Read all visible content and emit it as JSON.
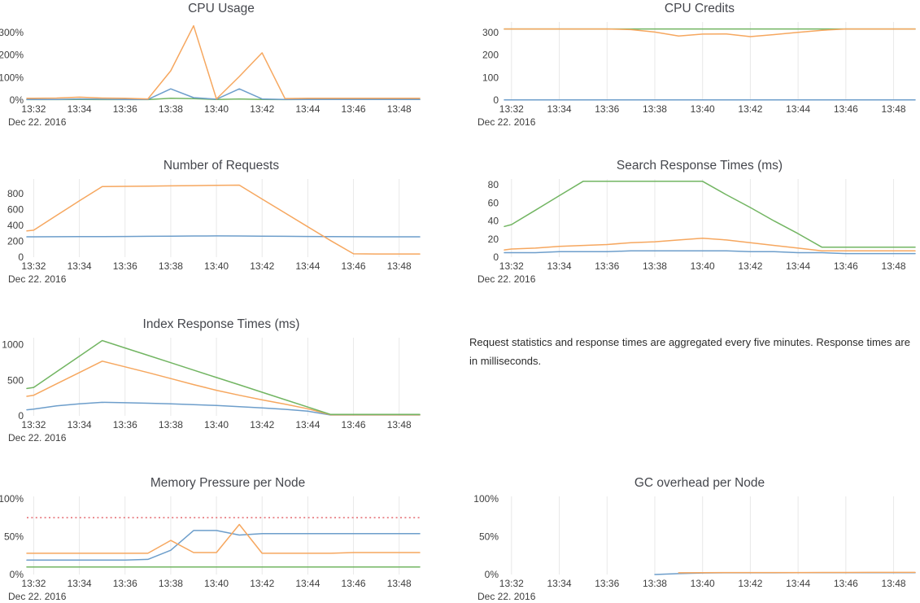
{
  "colors": {
    "blue": "#6d9ecb",
    "orange": "#f6a75f",
    "green": "#72b562",
    "red": "#e87f84",
    "grid": "#e8e8e8",
    "tick_text": "#3e3e3e",
    "title_text": "#45474d"
  },
  "axis": {
    "xmin": 31.7,
    "xmax": 48.9,
    "tick_minutes": [
      32,
      34,
      36,
      38,
      40,
      42,
      44,
      46,
      48
    ],
    "tick_labels": [
      "13:32",
      "13:34",
      "13:36",
      "13:38",
      "13:40",
      "13:42",
      "13:44",
      "13:46",
      "13:48"
    ],
    "date_label": "Dec 22. 2016",
    "x_minutes": [
      31.7,
      32,
      33,
      34,
      35,
      36,
      37,
      38,
      39,
      40,
      41,
      42,
      43,
      44,
      45,
      46,
      47,
      48,
      48.9
    ]
  },
  "note": {
    "text": "Request statistics and response times are aggregated every five minutes. Response times are in milliseconds."
  },
  "chart_data": [
    {
      "type": "line",
      "title": "CPU Usage",
      "grid": false,
      "ymax": 347,
      "yticks": [
        {
          "v": 0,
          "label": "0%"
        },
        {
          "v": 100,
          "label": "100%"
        },
        {
          "v": 200,
          "label": "200%"
        },
        {
          "v": 300,
          "label": "300%"
        }
      ],
      "series": [
        {
          "name": "green",
          "color": "green",
          "values": [
            2,
            2,
            2,
            3,
            2,
            2,
            2,
            8,
            6,
            3,
            5,
            3,
            2,
            3,
            3,
            3,
            3,
            3,
            3
          ]
        },
        {
          "name": "blue",
          "color": "blue",
          "values": [
            3,
            3,
            3,
            5,
            4,
            3,
            3,
            50,
            11,
            4,
            50,
            5,
            3,
            3,
            3,
            3,
            3,
            3,
            3
          ]
        },
        {
          "name": "orange",
          "color": "orange",
          "values": [
            8,
            8,
            9,
            13,
            9,
            8,
            5,
            130,
            330,
            5,
            105,
            210,
            7,
            8,
            8,
            8,
            8,
            8,
            8
          ]
        }
      ]
    },
    {
      "type": "line",
      "title": "CPU Credits",
      "grid": true,
      "ymax": 347,
      "yticks": [
        {
          "v": 0,
          "label": "0"
        },
        {
          "v": 100,
          "label": "100"
        },
        {
          "v": 200,
          "label": "200"
        },
        {
          "v": 300,
          "label": "300"
        }
      ],
      "series": [
        {
          "name": "blue",
          "color": "blue",
          "values": [
            1,
            1,
            1,
            1,
            1,
            1,
            1,
            1,
            1,
            1,
            1,
            1,
            1,
            1,
            1,
            1,
            1,
            1,
            1
          ]
        },
        {
          "name": "green",
          "color": "green",
          "values": [
            316,
            316,
            316,
            316,
            316,
            316,
            316,
            316,
            316,
            316,
            316,
            316,
            316,
            316,
            316,
            316,
            316,
            316,
            316
          ]
        },
        {
          "name": "orange",
          "color": "orange",
          "values": [
            316,
            316,
            316,
            316,
            316,
            316,
            313,
            302,
            285,
            293,
            294,
            282,
            291,
            301,
            310,
            316,
            316,
            316,
            316
          ]
        }
      ]
    },
    {
      "type": "line",
      "title": "Number of Requests",
      "grid": true,
      "ymax": 985,
      "yticks": [
        {
          "v": 0,
          "label": "0"
        },
        {
          "v": 200,
          "label": "200"
        },
        {
          "v": 400,
          "label": "400"
        },
        {
          "v": 600,
          "label": "600"
        },
        {
          "v": 800,
          "label": "800"
        }
      ],
      "series": [
        {
          "name": "blue",
          "color": "blue",
          "values": [
            257,
            257,
            258,
            259,
            260,
            261,
            263,
            265,
            267,
            268,
            267,
            265,
            263,
            261,
            259,
            258,
            257,
            257,
            257
          ]
        },
        {
          "name": "orange",
          "color": "orange",
          "values": [
            330,
            340,
            525,
            710,
            890,
            893,
            896,
            899,
            902,
            905,
            908,
            733,
            558,
            383,
            208,
            42,
            40,
            40,
            40
          ]
        }
      ]
    },
    {
      "type": "line",
      "title": "Search Response Times (ms)",
      "grid": true,
      "ymax": 86.5,
      "yticks": [
        {
          "v": 0,
          "label": "0"
        },
        {
          "v": 20,
          "label": "20"
        },
        {
          "v": 40,
          "label": "40"
        },
        {
          "v": 60,
          "label": "60"
        },
        {
          "v": 80,
          "label": "80"
        }
      ],
      "series": [
        {
          "name": "blue",
          "color": "blue",
          "values": [
            5,
            5,
            5,
            6,
            6,
            6,
            7,
            7,
            7,
            7,
            7,
            6,
            6,
            5,
            5,
            4,
            4,
            4,
            4
          ]
        },
        {
          "name": "orange",
          "color": "orange",
          "values": [
            8,
            9,
            10,
            12,
            13,
            14,
            16,
            17,
            19,
            21,
            19,
            16,
            13,
            10,
            7,
            7,
            7,
            7,
            7
          ]
        },
        {
          "name": "green",
          "color": "green",
          "values": [
            34,
            36,
            52,
            68,
            84,
            84,
            84,
            84,
            84,
            84,
            69,
            55,
            40,
            26,
            11,
            11,
            11,
            11,
            11
          ]
        }
      ]
    },
    {
      "type": "line",
      "title": "Index Response Times (ms)",
      "grid": true,
      "ymax": 1100,
      "yticks": [
        {
          "v": 0,
          "label": "0"
        },
        {
          "v": 500,
          "label": "500"
        },
        {
          "v": 1000,
          "label": "1000"
        }
      ],
      "series": [
        {
          "name": "blue",
          "color": "blue",
          "values": [
            85,
            95,
            140,
            170,
            190,
            185,
            178,
            168,
            157,
            145,
            130,
            112,
            92,
            65,
            12,
            12,
            12,
            12,
            12
          ]
        },
        {
          "name": "orange",
          "color": "orange",
          "values": [
            275,
            290,
            450,
            610,
            770,
            690,
            610,
            525,
            440,
            360,
            290,
            225,
            165,
            100,
            15,
            15,
            15,
            15,
            15
          ]
        },
        {
          "name": "green",
          "color": "green",
          "values": [
            385,
            400,
            620,
            840,
            1060,
            956,
            852,
            748,
            644,
            540,
            436,
            332,
            228,
            124,
            20,
            20,
            20,
            20,
            20
          ]
        }
      ]
    },
    {
      "type": "line",
      "title": "Memory Pressure per Node",
      "grid": true,
      "ymax": 103,
      "yticks": [
        {
          "v": 0,
          "label": "0%"
        },
        {
          "v": 50,
          "label": "50%"
        },
        {
          "v": 100,
          "label": "100%"
        }
      ],
      "ref_line": {
        "value": 75,
        "color": "red",
        "style": "dotted"
      },
      "series": [
        {
          "name": "green",
          "color": "green",
          "values": [
            10,
            10,
            10,
            10,
            10,
            10,
            10,
            10,
            10,
            10,
            10,
            10,
            10,
            10,
            10,
            10,
            10,
            10,
            10
          ]
        },
        {
          "name": "blue",
          "color": "blue",
          "values": [
            19,
            19,
            19,
            19,
            19,
            19,
            20,
            32,
            58,
            58,
            52,
            54,
            54,
            54,
            54,
            54,
            54,
            54,
            54
          ]
        },
        {
          "name": "orange",
          "color": "orange",
          "values": [
            28,
            28,
            28,
            28,
            28,
            28,
            28,
            45,
            29,
            29,
            66,
            28,
            28,
            28,
            28,
            29,
            29,
            29,
            29
          ]
        }
      ]
    },
    {
      "type": "line",
      "title": "GC overhead per Node",
      "grid": true,
      "ymax": 103,
      "yticks": [
        {
          "v": 0,
          "label": "0%"
        },
        {
          "v": 50,
          "label": "50%"
        },
        {
          "v": 100,
          "label": "100%"
        }
      ],
      "series": [
        {
          "name": "blue",
          "color": "blue",
          "values": [
            null,
            null,
            null,
            null,
            null,
            null,
            null,
            0,
            1.2,
            2,
            2.2,
            2.3,
            2.3,
            2.4,
            2.4,
            2.4,
            2.5,
            2.5,
            2.5
          ]
        },
        {
          "name": "orange",
          "color": "orange",
          "values": [
            null,
            null,
            null,
            null,
            null,
            null,
            null,
            null,
            2.2,
            2.4,
            2.6,
            2.6,
            2.6,
            2.6,
            2.7,
            2.7,
            2.8,
            2.8,
            2.8
          ]
        }
      ]
    }
  ]
}
